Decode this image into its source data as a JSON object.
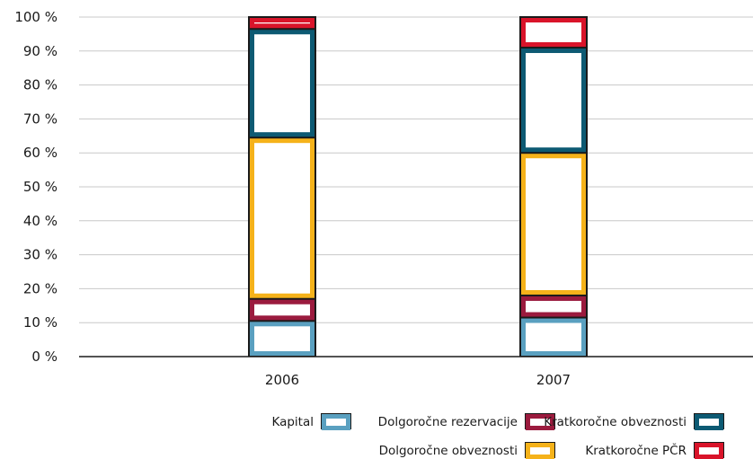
{
  "chart_data": {
    "type": "bar",
    "stacked": true,
    "categories": [
      "2006",
      "2007"
    ],
    "series": [
      {
        "name": "Kapital",
        "color": "#5aa0c0",
        "values": [
          10.5,
          11.5
        ]
      },
      {
        "name": "Dolgoročne rezervacije",
        "color": "#9b1b3e",
        "values": [
          6.5,
          6.5
        ]
      },
      {
        "name": "Dolgoročne obveznosti",
        "color": "#f5b21a",
        "values": [
          47.5,
          42
        ]
      },
      {
        "name": "Kratkoročne obveznosti",
        "color": "#0d5a73",
        "values": [
          32,
          31
        ]
      },
      {
        "name": "Kratkoročne PČR",
        "color": "#d9142a",
        "values": [
          3.5,
          9
        ]
      }
    ],
    "yticks": [
      "0 %",
      "10 %",
      "20 %",
      "30 %",
      "40 %",
      "50 %",
      "60 %",
      "70 %",
      "80 %",
      "90 %",
      "100 %"
    ],
    "ylim": [
      0,
      100
    ],
    "grid": true,
    "legend_position": "bottom-right",
    "title": "",
    "xlabel": "",
    "ylabel": ""
  }
}
